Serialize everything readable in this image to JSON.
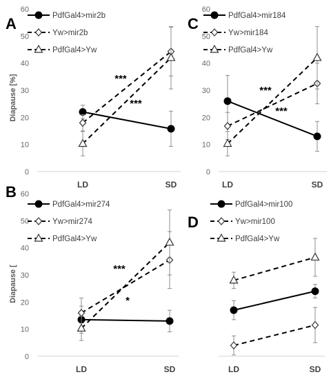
{
  "chart_data": [
    {
      "panel": "A",
      "type": "line",
      "categories": [
        "LD",
        "SD"
      ],
      "ylabel": "Diapause [%]",
      "ylim": [
        0,
        60
      ],
      "yticks": [
        0,
        10,
        20,
        30,
        40,
        50,
        60
      ],
      "series": [
        {
          "name": "PdfGal4>mir2b",
          "style": "solid",
          "marker": "circle",
          "values": [
            22,
            15.8
          ],
          "err": [
            2.5,
            6.5
          ]
        },
        {
          "name": "Yw>mir2b",
          "style": "dashed",
          "marker": "diamond",
          "values": [
            18,
            44.3
          ],
          "err": [
            3,
            9
          ]
        },
        {
          "name": "PdfGal4>Yw",
          "style": "dashed",
          "marker": "triangle",
          "values": [
            10.3,
            42
          ],
          "err": [
            4.5,
            11.5
          ]
        }
      ],
      "annotations": [
        "***",
        "***"
      ]
    },
    {
      "panel": "C",
      "type": "line",
      "categories": [
        "LD",
        "SD"
      ],
      "ylabel": "",
      "ylim": [
        0,
        60
      ],
      "yticks": [
        0,
        10,
        20,
        30,
        40,
        50,
        60
      ],
      "series": [
        {
          "name": "PdfGal4>mir184",
          "style": "solid",
          "marker": "circle",
          "values": [
            26,
            13
          ],
          "err": [
            9.5,
            5.5
          ]
        },
        {
          "name": "Yw>mir184",
          "style": "dashed",
          "marker": "diamond",
          "values": [
            16.8,
            32.5
          ],
          "err": [
            5,
            7.5
          ]
        },
        {
          "name": "PdfGal4>Yw",
          "style": "dashed",
          "marker": "triangle",
          "values": [
            10.3,
            42
          ],
          "err": [
            4.5,
            11.5
          ]
        }
      ],
      "annotations": [
        "***",
        "***"
      ]
    },
    {
      "panel": "B",
      "type": "line",
      "categories": [
        "LD",
        "SD"
      ],
      "ylabel": "Diapause [",
      "ylim": [
        0,
        60
      ],
      "yticks": [
        0,
        10,
        20,
        30,
        40,
        50,
        60
      ],
      "series": [
        {
          "name": "PdfGal4>mir274",
          "style": "solid",
          "marker": "circle",
          "values": [
            13.5,
            13
          ],
          "err": [
            5,
            4
          ]
        },
        {
          "name": "Yw>mir274",
          "style": "dashed",
          "marker": "diamond",
          "values": [
            16,
            35.5
          ],
          "err": [
            5.5,
            10.5
          ]
        },
        {
          "name": "PdfGal4>Yw",
          "style": "dashed",
          "marker": "triangle",
          "values": [
            10.3,
            42
          ],
          "err": [
            4.5,
            12
          ]
        }
      ],
      "annotations": [
        "***",
        "*"
      ]
    },
    {
      "panel": "D",
      "type": "line",
      "categories": [
        "LD",
        "SD"
      ],
      "ylabel": "",
      "ylim": [
        0,
        60
      ],
      "yticks": [],
      "series": [
        {
          "name": "PdfGal4>mir100",
          "style": "solid",
          "marker": "circle",
          "values": [
            17,
            24
          ],
          "err": [
            3.5,
            2.5
          ]
        },
        {
          "name": "Yw>mir100",
          "style": "dashed",
          "marker": "diamond",
          "values": [
            4,
            11.5
          ],
          "err": [
            3.5,
            6.5
          ]
        },
        {
          "name": "PdfGal4>Yw",
          "style": "dashed",
          "marker": "triangle",
          "values": [
            28,
            36.5
          ],
          "err": [
            3,
            7
          ]
        }
      ],
      "annotations": []
    }
  ]
}
